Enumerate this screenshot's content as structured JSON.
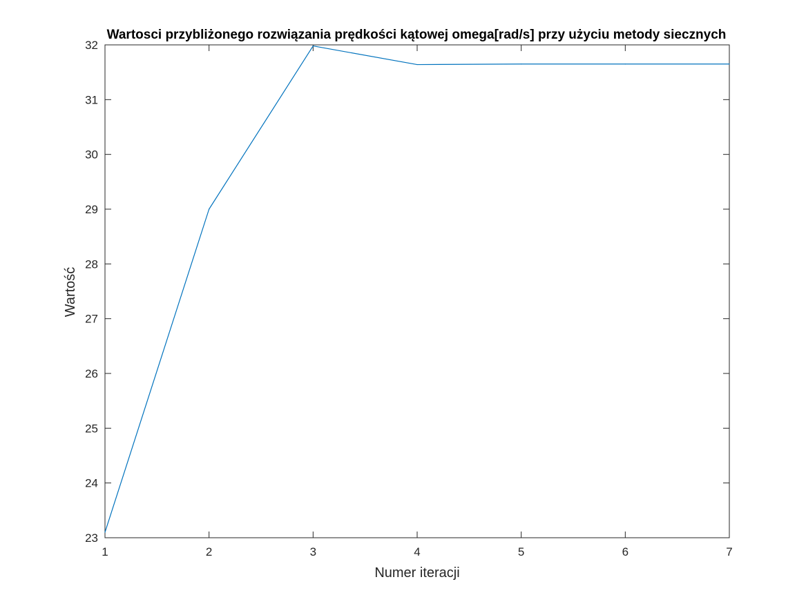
{
  "chart_data": {
    "type": "line",
    "title": "Wartosci przybliżonego rozwiązania prędkości kątowej omega[rad/s] przy użyciu metody siecznych",
    "xlabel": "Numer iteracji",
    "ylabel": "Wartość",
    "xlim": [
      1,
      7
    ],
    "ylim": [
      23,
      32
    ],
    "xticks": [
      "1",
      "2",
      "3",
      "4",
      "5",
      "6",
      "7"
    ],
    "yticks": [
      "23",
      "24",
      "25",
      "26",
      "27",
      "28",
      "29",
      "30",
      "31",
      "32"
    ],
    "grid": false,
    "legend": "none",
    "series": [
      {
        "color": "#0072BD",
        "x": [
          1,
          2,
          3,
          4,
          5,
          6,
          7
        ],
        "y": [
          23.1,
          29.0,
          31.98,
          31.64,
          31.65,
          31.65,
          31.65
        ]
      }
    ]
  }
}
